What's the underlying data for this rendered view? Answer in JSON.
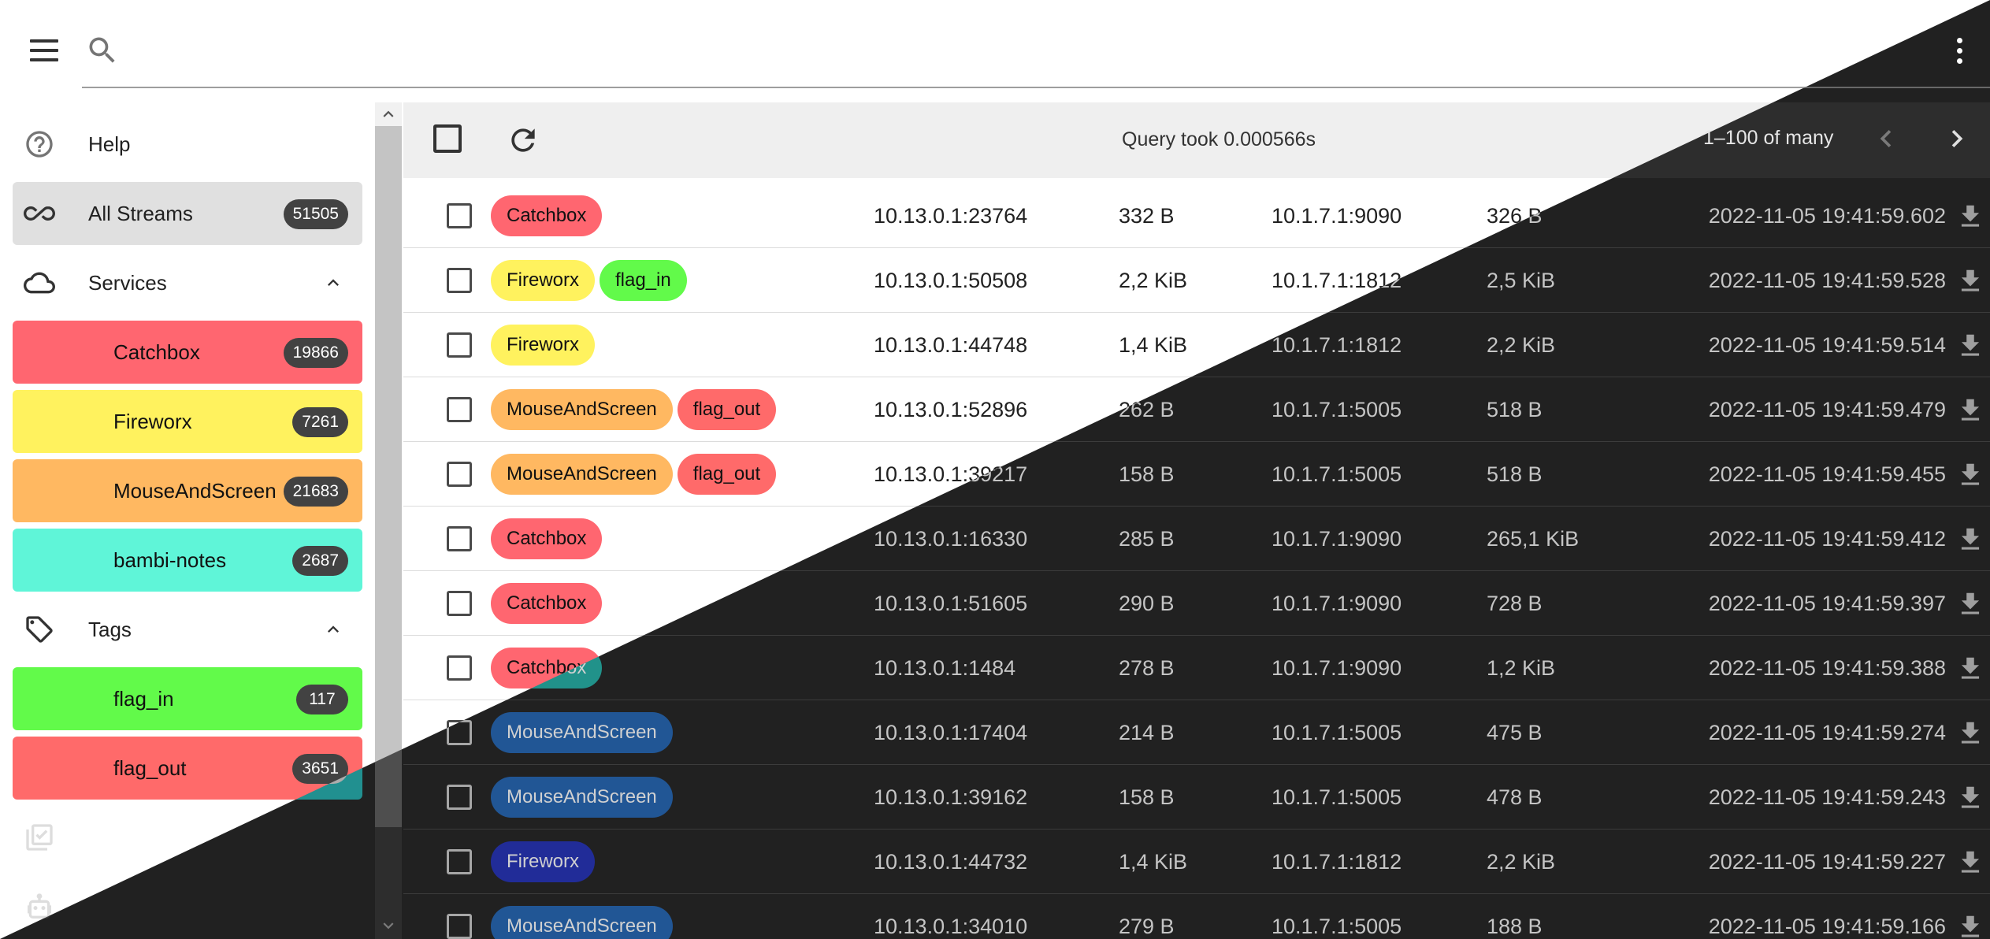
{
  "header": {
    "search_placeholder": "",
    "search_value": ""
  },
  "sidebar": {
    "help_label": "Help",
    "all_streams": {
      "label": "All Streams",
      "count": "51505"
    },
    "services_label": "Services",
    "services": [
      {
        "label": "Catchbox",
        "count": "19866",
        "color": "#ff6670"
      },
      {
        "label": "Fireworx",
        "count": "7261",
        "color": "#fff25e"
      },
      {
        "label": "MouseAndScreen",
        "count": "21683",
        "color": "#ffb861"
      },
      {
        "label": "bambi-notes",
        "count": "2687",
        "color": "#5ff5d8"
      }
    ],
    "tags_label": "Tags",
    "tags": [
      {
        "label": "flag_in",
        "count": "117",
        "color": "#62fa4a"
      },
      {
        "label": "flag_out",
        "count": "3651",
        "color": "#ff6a6a"
      }
    ],
    "marks_label": "Marks",
    "generated_label": "Generated"
  },
  "toolbar": {
    "query_took": "Query took 0.000566s",
    "paging": "1–100 of many"
  },
  "colors": {
    "dark_bg": "#212121",
    "toolbar_bg": "#efefef",
    "badge_bg": "#424242"
  },
  "streams": [
    {
      "tags": [
        {
          "label": "Catchbox",
          "color": "#ff6670"
        }
      ],
      "src": "10.13.0.1:23764",
      "src_bytes": "332 B",
      "dst": "10.1.7.1:9090",
      "dst_bytes": "326 B",
      "time": "2022-11-05 19:41:59.602"
    },
    {
      "tags": [
        {
          "label": "Fireworx",
          "color": "#fff25e"
        },
        {
          "label": "flag_in",
          "color": "#62fa4a"
        }
      ],
      "src": "10.13.0.1:50508",
      "src_bytes": "2,2 KiB",
      "dst": "10.1.7.1:1812",
      "dst_bytes": "2,5 KiB",
      "time": "2022-11-05 19:41:59.528"
    },
    {
      "tags": [
        {
          "label": "Fireworx",
          "color": "#fff25e"
        }
      ],
      "src": "10.13.0.1:44748",
      "src_bytes": "1,4 KiB",
      "dst": "10.1.7.1:1812",
      "dst_bytes": "2,2 KiB",
      "time": "2022-11-05 19:41:59.514"
    },
    {
      "tags": [
        {
          "label": "MouseAndScreen",
          "color": "#ffb861"
        },
        {
          "label": "flag_out",
          "color": "#ff6a6a"
        }
      ],
      "src": "10.13.0.1:52896",
      "src_bytes": "262 B",
      "dst": "10.1.7.1:5005",
      "dst_bytes": "518 B",
      "time": "2022-11-05 19:41:59.479"
    },
    {
      "tags": [
        {
          "label": "MouseAndScreen",
          "color": "#ffb861"
        },
        {
          "label": "flag_out",
          "color": "#ff6a6a"
        }
      ],
      "src": "10.13.0.1:39217",
      "src_bytes": "158 B",
      "dst": "10.1.7.1:5005",
      "dst_bytes": "518 B",
      "time": "2022-11-05 19:41:59.455"
    },
    {
      "tags": [
        {
          "label": "Catchbox",
          "color": "#ff6670"
        }
      ],
      "src": "10.13.0.1:16330",
      "src_bytes": "285 B",
      "dst": "10.1.7.1:9090",
      "dst_bytes": "265,1 KiB",
      "time": "2022-11-05 19:41:59.412"
    },
    {
      "tags": [
        {
          "label": "Catchbox",
          "color": "#ff6670"
        }
      ],
      "src": "10.13.0.1:51605",
      "src_bytes": "290 B",
      "dst": "10.1.7.1:9090",
      "dst_bytes": "728 B",
      "time": "2022-11-05 19:41:59.397"
    },
    {
      "tags": [
        {
          "label": "Catchbox",
          "color": "#ff6670"
        }
      ],
      "src": "10.13.0.1:1484",
      "src_bytes": "278 B",
      "dst": "10.1.7.1:9090",
      "dst_bytes": "1,2 KiB",
      "time": "2022-11-05 19:41:59.388"
    },
    {
      "tags": [
        {
          "label": "MouseAndScreen",
          "color": "#ffb861"
        }
      ],
      "src": "10.13.0.1:17404",
      "src_bytes": "214 B",
      "dst": "10.1.7.1:5005",
      "dst_bytes": "475 B",
      "time": "2022-11-05 19:41:59.274"
    },
    {
      "tags": [
        {
          "label": "MouseAndScreen",
          "color": "#ffb861"
        }
      ],
      "src": "10.13.0.1:39162",
      "src_bytes": "158 B",
      "dst": "10.1.7.1:5005",
      "dst_bytes": "478 B",
      "time": "2022-11-05 19:41:59.243"
    },
    {
      "tags": [
        {
          "label": "Fireworx",
          "color": "#fff25e"
        }
      ],
      "src": "10.13.0.1:44732",
      "src_bytes": "1,4 KiB",
      "dst": "10.1.7.1:1812",
      "dst_bytes": "2,2 KiB",
      "time": "2022-11-05 19:41:59.227"
    },
    {
      "tags": [
        {
          "label": "MouseAndScreen",
          "color": "#ffb861"
        }
      ],
      "src": "10.13.0.1:34010",
      "src_bytes": "279 B",
      "dst": "10.1.7.1:5005",
      "dst_bytes": "188 B",
      "time": "2022-11-05 19:41:59.166"
    }
  ]
}
